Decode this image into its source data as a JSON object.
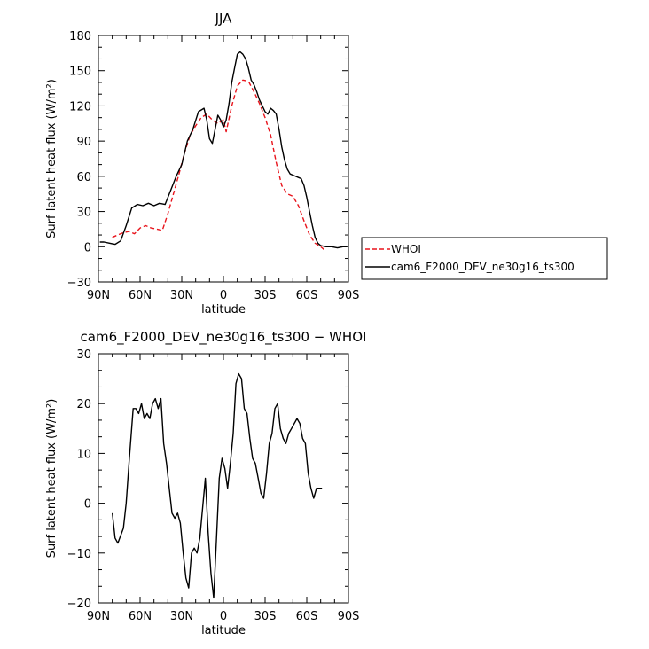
{
  "chart_data": [
    {
      "type": "line",
      "title": "JJA",
      "xlabel": "latitude",
      "ylabel": "Surf latent heat flux (W/m²)",
      "xlim": [
        90,
        -90
      ],
      "ylim": [
        -30,
        180
      ],
      "xticks": [
        90,
        60,
        30,
        0,
        -30,
        -60,
        -90
      ],
      "xtick_labels": [
        "90N",
        "60N",
        "30N",
        "0",
        "30S",
        "60S",
        "90S"
      ],
      "yticks": [
        -30,
        0,
        30,
        60,
        90,
        120,
        150,
        180
      ],
      "ytick_labels": [
        "−30",
        "0",
        "30",
        "60",
        "90",
        "120",
        "150",
        "180"
      ],
      "grid": false,
      "legend_position": "right",
      "series": [
        {
          "name": "WHOI",
          "color": "#e8141c",
          "dash": "dashed",
          "x": [
            80,
            76,
            72,
            68,
            64,
            60,
            56,
            52,
            48,
            44,
            40,
            36,
            32,
            28,
            24,
            20,
            16,
            12,
            8,
            4,
            0,
            -2,
            -6,
            -10,
            -14,
            -18,
            -22,
            -26,
            -30,
            -34,
            -38,
            -42,
            -46,
            -50,
            -54,
            -58,
            -62,
            -66,
            -70,
            -73
          ],
          "values": [
            8,
            10,
            12,
            13,
            11,
            16,
            18,
            16,
            15,
            14,
            28,
            45,
            62,
            80,
            95,
            103,
            110,
            113,
            108,
            105,
            108,
            98,
            120,
            137,
            142,
            141,
            132,
            122,
            110,
            95,
            72,
            52,
            45,
            43,
            35,
            22,
            10,
            3,
            0,
            -3
          ]
        },
        {
          "name": "cam6_F2000_DEV_ne30g16_ts300",
          "color": "#000000",
          "dash": "solid",
          "x": [
            89,
            86,
            82,
            78,
            74,
            70,
            66,
            62,
            58,
            54,
            50,
            46,
            42,
            38,
            34,
            30,
            26,
            22,
            18,
            14,
            12,
            10,
            8,
            6,
            4,
            2,
            0,
            -2,
            -4,
            -6,
            -8,
            -10,
            -12,
            -14,
            -16,
            -18,
            -20,
            -22,
            -24,
            -26,
            -28,
            -30,
            -32,
            -34,
            -36,
            -38,
            -40,
            -42,
            -44,
            -46,
            -48,
            -50,
            -52,
            -54,
            -56,
            -58,
            -60,
            -62,
            -64,
            -66,
            -68,
            -70,
            -74,
            -78,
            -82,
            -86,
            -89
          ],
          "values": [
            4,
            4,
            3,
            2,
            5,
            18,
            33,
            36,
            35,
            37,
            35,
            37,
            36,
            48,
            60,
            70,
            90,
            100,
            115,
            118,
            108,
            92,
            88,
            100,
            112,
            108,
            102,
            108,
            122,
            140,
            152,
            164,
            166,
            164,
            160,
            152,
            142,
            138,
            132,
            125,
            120,
            115,
            113,
            118,
            116,
            113,
            100,
            85,
            74,
            66,
            62,
            61,
            60,
            59,
            58,
            52,
            42,
            30,
            18,
            8,
            3,
            1,
            0,
            0,
            -1,
            0,
            0
          ]
        }
      ]
    },
    {
      "type": "line",
      "title": "cam6_F2000_DEV_ne30g16_ts300 − WHOI",
      "xlabel": "latitude",
      "ylabel": "Surf latent heat flux (W/m²)",
      "xlim": [
        90,
        -90
      ],
      "ylim": [
        -20,
        30
      ],
      "xticks": [
        90,
        60,
        30,
        0,
        -30,
        -60,
        -90
      ],
      "xtick_labels": [
        "90N",
        "60N",
        "30N",
        "0",
        "30S",
        "60S",
        "90S"
      ],
      "yticks": [
        -20,
        -10,
        0,
        10,
        20,
        30
      ],
      "ytick_labels": [
        "−20",
        "−10",
        "0",
        "10",
        "20",
        "30"
      ],
      "grid": false,
      "series": [
        {
          "color": "#000000",
          "dash": "solid",
          "x": [
            80,
            78,
            76,
            72,
            70,
            68,
            65,
            63,
            61,
            59,
            57,
            55,
            53,
            51,
            49,
            47,
            45,
            43,
            41,
            39,
            37,
            35,
            33,
            31,
            29,
            27,
            25,
            23,
            21,
            19,
            17,
            15,
            13,
            11,
            9,
            7,
            5,
            3,
            1,
            -1,
            -3,
            -5,
            -7,
            -9,
            -11,
            -13,
            -15,
            -17,
            -19,
            -21,
            -23,
            -25,
            -27,
            -29,
            -31,
            -33,
            -35,
            -37,
            -39,
            -41,
            -43,
            -45,
            -47,
            -49,
            -51,
            -53,
            -55,
            -57,
            -59,
            -61,
            -63,
            -65,
            -67,
            -69,
            -71
          ],
          "values": [
            -2,
            -7,
            -8,
            -5,
            0,
            8,
            19,
            19,
            18,
            20,
            17,
            18,
            17,
            20,
            21,
            19,
            21,
            12,
            8,
            3,
            -2,
            -3,
            -2,
            -4,
            -10,
            -15,
            -17,
            -10,
            -9,
            -10,
            -7,
            -1,
            5,
            -6,
            -14,
            -19,
            -7,
            5,
            9,
            7,
            3,
            8,
            14,
            24,
            26,
            25,
            19,
            18,
            13,
            9,
            8,
            5,
            2,
            1,
            6,
            12,
            14,
            19,
            20,
            15,
            13,
            12,
            14,
            15,
            16,
            17,
            16,
            13,
            12,
            6,
            3,
            1,
            3,
            3,
            3
          ]
        }
      ]
    }
  ]
}
